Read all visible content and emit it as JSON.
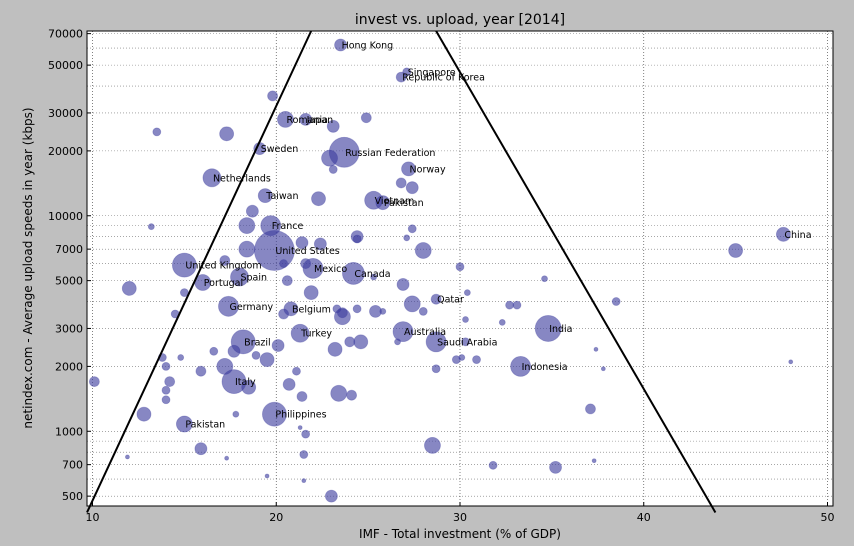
{
  "chart_data": {
    "type": "scatter",
    "title": "invest vs. upload, year [2014]",
    "xlabel": "IMF - Total investment (% of GDP)",
    "ylabel": "netindex.com - Average upload speeds in year (kbps)",
    "xlim": [
      9.7,
      50.3
    ],
    "ylim": [
      450,
      72000
    ],
    "yscale": "log",
    "x_ticks": [
      10,
      20,
      30,
      40,
      50
    ],
    "y_ticks": [
      500,
      700,
      1000,
      2000,
      3000,
      5000,
      7000,
      10000,
      20000,
      30000,
      50000,
      70000
    ],
    "y_tick_labels": [
      "500",
      "700",
      "1000",
      "2000",
      "3000",
      "5000",
      "7000",
      "10000",
      "20000",
      "30000",
      "50000",
      "70000"
    ],
    "grid": true,
    "marker_color": "#3d3d9e",
    "line_color": "#000000",
    "fit_lines": [
      {
        "x": [
          9.7,
          21.9
        ],
        "y": [
          420,
          72000
        ]
      },
      {
        "x": [
          28.7,
          43.9
        ],
        "y": [
          72000,
          420
        ]
      }
    ],
    "points": [
      {
        "x": 23.5,
        "y": 62000,
        "s": 6,
        "label": "Hong Kong"
      },
      {
        "x": 27.1,
        "y": 46500,
        "s": 4,
        "label": "Singapore"
      },
      {
        "x": 26.8,
        "y": 44000,
        "s": 5,
        "label": "Republic of Korea"
      },
      {
        "x": 19.8,
        "y": 36000,
        "s": 5,
        "label": ""
      },
      {
        "x": 20.5,
        "y": 28000,
        "s": 8,
        "label": "Romania"
      },
      {
        "x": 21.6,
        "y": 28000,
        "s": 6,
        "label": "Japan"
      },
      {
        "x": 23.1,
        "y": 26000,
        "s": 6,
        "label": ""
      },
      {
        "x": 24.9,
        "y": 28500,
        "s": 5,
        "label": ""
      },
      {
        "x": 13.5,
        "y": 24500,
        "s": 4,
        "label": ""
      },
      {
        "x": 17.3,
        "y": 24000,
        "s": 7,
        "label": ""
      },
      {
        "x": 19.1,
        "y": 20500,
        "s": 6,
        "label": "Sweden"
      },
      {
        "x": 23.7,
        "y": 19700,
        "s": 15,
        "label": "Russian Federation"
      },
      {
        "x": 22.9,
        "y": 18500,
        "s": 8,
        "label": ""
      },
      {
        "x": 27.2,
        "y": 16500,
        "s": 7,
        "label": "Norway"
      },
      {
        "x": 23.1,
        "y": 16400,
        "s": 4,
        "label": ""
      },
      {
        "x": 16.5,
        "y": 15000,
        "s": 9,
        "label": "Netherlands"
      },
      {
        "x": 26.8,
        "y": 14200,
        "s": 5,
        "label": ""
      },
      {
        "x": 27.4,
        "y": 13500,
        "s": 6,
        "label": ""
      },
      {
        "x": 19.4,
        "y": 12400,
        "s": 7,
        "label": "Taiwan"
      },
      {
        "x": 22.3,
        "y": 12000,
        "s": 7,
        "label": ""
      },
      {
        "x": 25.3,
        "y": 11800,
        "s": 9,
        "label": "Vietnam"
      },
      {
        "x": 25.8,
        "y": 11500,
        "s": 7,
        "label": "Pakistan"
      },
      {
        "x": 18.7,
        "y": 10500,
        "s": 6,
        "label": ""
      },
      {
        "x": 19.7,
        "y": 9000,
        "s": 10,
        "label": "France"
      },
      {
        "x": 18.4,
        "y": 9000,
        "s": 8,
        "label": ""
      },
      {
        "x": 27.4,
        "y": 8700,
        "s": 4,
        "label": ""
      },
      {
        "x": 24.4,
        "y": 8000,
        "s": 6,
        "label": ""
      },
      {
        "x": 24.4,
        "y": 7800,
        "s": 4,
        "label": ""
      },
      {
        "x": 27.1,
        "y": 7900,
        "s": 3,
        "label": ""
      },
      {
        "x": 13.2,
        "y": 8900,
        "s": 3,
        "label": ""
      },
      {
        "x": 21.4,
        "y": 7500,
        "s": 6,
        "label": ""
      },
      {
        "x": 22.4,
        "y": 7400,
        "s": 6,
        "label": ""
      },
      {
        "x": 18.4,
        "y": 7000,
        "s": 8,
        "label": ""
      },
      {
        "x": 19.9,
        "y": 6900,
        "s": 20,
        "label": "United States"
      },
      {
        "x": 28.0,
        "y": 6900,
        "s": 8,
        "label": ""
      },
      {
        "x": 47.6,
        "y": 8200,
        "s": 7,
        "label": "China"
      },
      {
        "x": 45.0,
        "y": 6900,
        "s": 7,
        "label": ""
      },
      {
        "x": 17.2,
        "y": 6200,
        "s": 5,
        "label": ""
      },
      {
        "x": 15.0,
        "y": 5900,
        "s": 12,
        "label": "United Kingdom"
      },
      {
        "x": 20.4,
        "y": 6000,
        "s": 4,
        "label": ""
      },
      {
        "x": 21.6,
        "y": 6000,
        "s": 5,
        "label": ""
      },
      {
        "x": 22.0,
        "y": 5700,
        "s": 10,
        "label": "Mexico"
      },
      {
        "x": 24.2,
        "y": 5400,
        "s": 11,
        "label": "Canada"
      },
      {
        "x": 30.0,
        "y": 5800,
        "s": 4,
        "label": ""
      },
      {
        "x": 18.0,
        "y": 5200,
        "s": 9,
        "label": "Spain"
      },
      {
        "x": 20.6,
        "y": 5000,
        "s": 5,
        "label": ""
      },
      {
        "x": 25.3,
        "y": 5200,
        "s": 3,
        "label": ""
      },
      {
        "x": 26.9,
        "y": 4800,
        "s": 6,
        "label": ""
      },
      {
        "x": 16.0,
        "y": 4900,
        "s": 8,
        "label": "Portugal"
      },
      {
        "x": 34.6,
        "y": 5100,
        "s": 3,
        "label": ""
      },
      {
        "x": 12.0,
        "y": 4600,
        "s": 7,
        "label": ""
      },
      {
        "x": 15.0,
        "y": 4400,
        "s": 4,
        "label": ""
      },
      {
        "x": 21.9,
        "y": 4400,
        "s": 7,
        "label": ""
      },
      {
        "x": 28.7,
        "y": 4100,
        "s": 5,
        "label": "Qatar"
      },
      {
        "x": 30.4,
        "y": 4400,
        "s": 3,
        "label": ""
      },
      {
        "x": 38.5,
        "y": 4000,
        "s": 4,
        "label": ""
      },
      {
        "x": 17.4,
        "y": 3800,
        "s": 10,
        "label": "Germany"
      },
      {
        "x": 20.8,
        "y": 3700,
        "s": 7,
        "label": "Belgium"
      },
      {
        "x": 20.4,
        "y": 3500,
        "s": 5,
        "label": ""
      },
      {
        "x": 23.3,
        "y": 3700,
        "s": 4,
        "label": ""
      },
      {
        "x": 23.6,
        "y": 3400,
        "s": 8,
        "label": ""
      },
      {
        "x": 23.6,
        "y": 3550,
        "s": 5,
        "label": ""
      },
      {
        "x": 24.4,
        "y": 3700,
        "s": 4,
        "label": ""
      },
      {
        "x": 25.4,
        "y": 3600,
        "s": 6,
        "label": ""
      },
      {
        "x": 25.8,
        "y": 3600,
        "s": 3,
        "label": ""
      },
      {
        "x": 27.4,
        "y": 3900,
        "s": 8,
        "label": ""
      },
      {
        "x": 28.0,
        "y": 3600,
        "s": 4,
        "label": ""
      },
      {
        "x": 32.7,
        "y": 3850,
        "s": 4,
        "label": ""
      },
      {
        "x": 33.1,
        "y": 3850,
        "s": 4,
        "label": ""
      },
      {
        "x": 14.5,
        "y": 3500,
        "s": 4,
        "label": ""
      },
      {
        "x": 30.3,
        "y": 3300,
        "s": 3,
        "label": ""
      },
      {
        "x": 32.3,
        "y": 3200,
        "s": 3,
        "label": ""
      },
      {
        "x": 34.8,
        "y": 3000,
        "s": 13,
        "label": "India"
      },
      {
        "x": 21.3,
        "y": 2850,
        "s": 9,
        "label": "Turkey"
      },
      {
        "x": 26.9,
        "y": 2900,
        "s": 10,
        "label": "Australia"
      },
      {
        "x": 18.2,
        "y": 2600,
        "s": 12,
        "label": "Brazil"
      },
      {
        "x": 28.7,
        "y": 2600,
        "s": 10,
        "label": "Saudi Arabia"
      },
      {
        "x": 30.3,
        "y": 2600,
        "s": 4,
        "label": ""
      },
      {
        "x": 24.0,
        "y": 2600,
        "s": 5,
        "label": ""
      },
      {
        "x": 24.6,
        "y": 2600,
        "s": 7,
        "label": ""
      },
      {
        "x": 26.6,
        "y": 2600,
        "s": 3,
        "label": ""
      },
      {
        "x": 20.1,
        "y": 2500,
        "s": 6,
        "label": ""
      },
      {
        "x": 23.2,
        "y": 2400,
        "s": 7,
        "label": ""
      },
      {
        "x": 17.7,
        "y": 2350,
        "s": 6,
        "label": ""
      },
      {
        "x": 16.6,
        "y": 2350,
        "s": 4,
        "label": ""
      },
      {
        "x": 18.9,
        "y": 2250,
        "s": 4,
        "label": ""
      },
      {
        "x": 13.8,
        "y": 2200,
        "s": 4,
        "label": ""
      },
      {
        "x": 14.8,
        "y": 2200,
        "s": 3,
        "label": ""
      },
      {
        "x": 19.5,
        "y": 2150,
        "s": 7,
        "label": ""
      },
      {
        "x": 29.8,
        "y": 2150,
        "s": 4,
        "label": ""
      },
      {
        "x": 30.1,
        "y": 2200,
        "s": 3,
        "label": ""
      },
      {
        "x": 30.9,
        "y": 2150,
        "s": 4,
        "label": ""
      },
      {
        "x": 37.4,
        "y": 2400,
        "s": 2,
        "label": ""
      },
      {
        "x": 33.3,
        "y": 2000,
        "s": 10,
        "label": "Indonesia"
      },
      {
        "x": 17.2,
        "y": 2000,
        "s": 8,
        "label": ""
      },
      {
        "x": 14.0,
        "y": 2000,
        "s": 4,
        "label": ""
      },
      {
        "x": 15.9,
        "y": 1900,
        "s": 5,
        "label": ""
      },
      {
        "x": 21.1,
        "y": 1900,
        "s": 4,
        "label": ""
      },
      {
        "x": 28.7,
        "y": 1950,
        "s": 4,
        "label": ""
      },
      {
        "x": 37.8,
        "y": 1950,
        "s": 2,
        "label": ""
      },
      {
        "x": 48.0,
        "y": 2100,
        "s": 2,
        "label": ""
      },
      {
        "x": 10.1,
        "y": 1700,
        "s": 5,
        "label": ""
      },
      {
        "x": 14.2,
        "y": 1700,
        "s": 5,
        "label": ""
      },
      {
        "x": 17.7,
        "y": 1700,
        "s": 12,
        "label": "Italy"
      },
      {
        "x": 18.5,
        "y": 1600,
        "s": 7,
        "label": ""
      },
      {
        "x": 20.7,
        "y": 1650,
        "s": 6,
        "label": ""
      },
      {
        "x": 14.0,
        "y": 1550,
        "s": 4,
        "label": ""
      },
      {
        "x": 23.4,
        "y": 1500,
        "s": 8,
        "label": ""
      },
      {
        "x": 24.1,
        "y": 1470,
        "s": 5,
        "label": ""
      },
      {
        "x": 21.4,
        "y": 1450,
        "s": 5,
        "label": ""
      },
      {
        "x": 14.0,
        "y": 1400,
        "s": 4,
        "label": ""
      },
      {
        "x": 12.8,
        "y": 1200,
        "s": 7,
        "label": ""
      },
      {
        "x": 19.9,
        "y": 1200,
        "s": 12,
        "label": "Philippines"
      },
      {
        "x": 37.1,
        "y": 1270,
        "s": 5,
        "label": ""
      },
      {
        "x": 17.8,
        "y": 1200,
        "s": 3,
        "label": ""
      },
      {
        "x": 15.0,
        "y": 1080,
        "s": 8,
        "label": "Pakistan"
      },
      {
        "x": 21.6,
        "y": 970,
        "s": 4,
        "label": ""
      },
      {
        "x": 21.3,
        "y": 1040,
        "s": 2,
        "label": ""
      },
      {
        "x": 15.9,
        "y": 830,
        "s": 6,
        "label": ""
      },
      {
        "x": 28.5,
        "y": 860,
        "s": 8,
        "label": ""
      },
      {
        "x": 21.5,
        "y": 780,
        "s": 4,
        "label": ""
      },
      {
        "x": 11.9,
        "y": 760,
        "s": 2,
        "label": ""
      },
      {
        "x": 17.3,
        "y": 750,
        "s": 2,
        "label": ""
      },
      {
        "x": 31.8,
        "y": 695,
        "s": 4,
        "label": ""
      },
      {
        "x": 35.2,
        "y": 680,
        "s": 6,
        "label": ""
      },
      {
        "x": 37.3,
        "y": 730,
        "s": 2,
        "label": ""
      },
      {
        "x": 19.5,
        "y": 620,
        "s": 2,
        "label": ""
      },
      {
        "x": 21.5,
        "y": 590,
        "s": 2,
        "label": ""
      },
      {
        "x": 23.0,
        "y": 500,
        "s": 6,
        "label": ""
      }
    ]
  }
}
